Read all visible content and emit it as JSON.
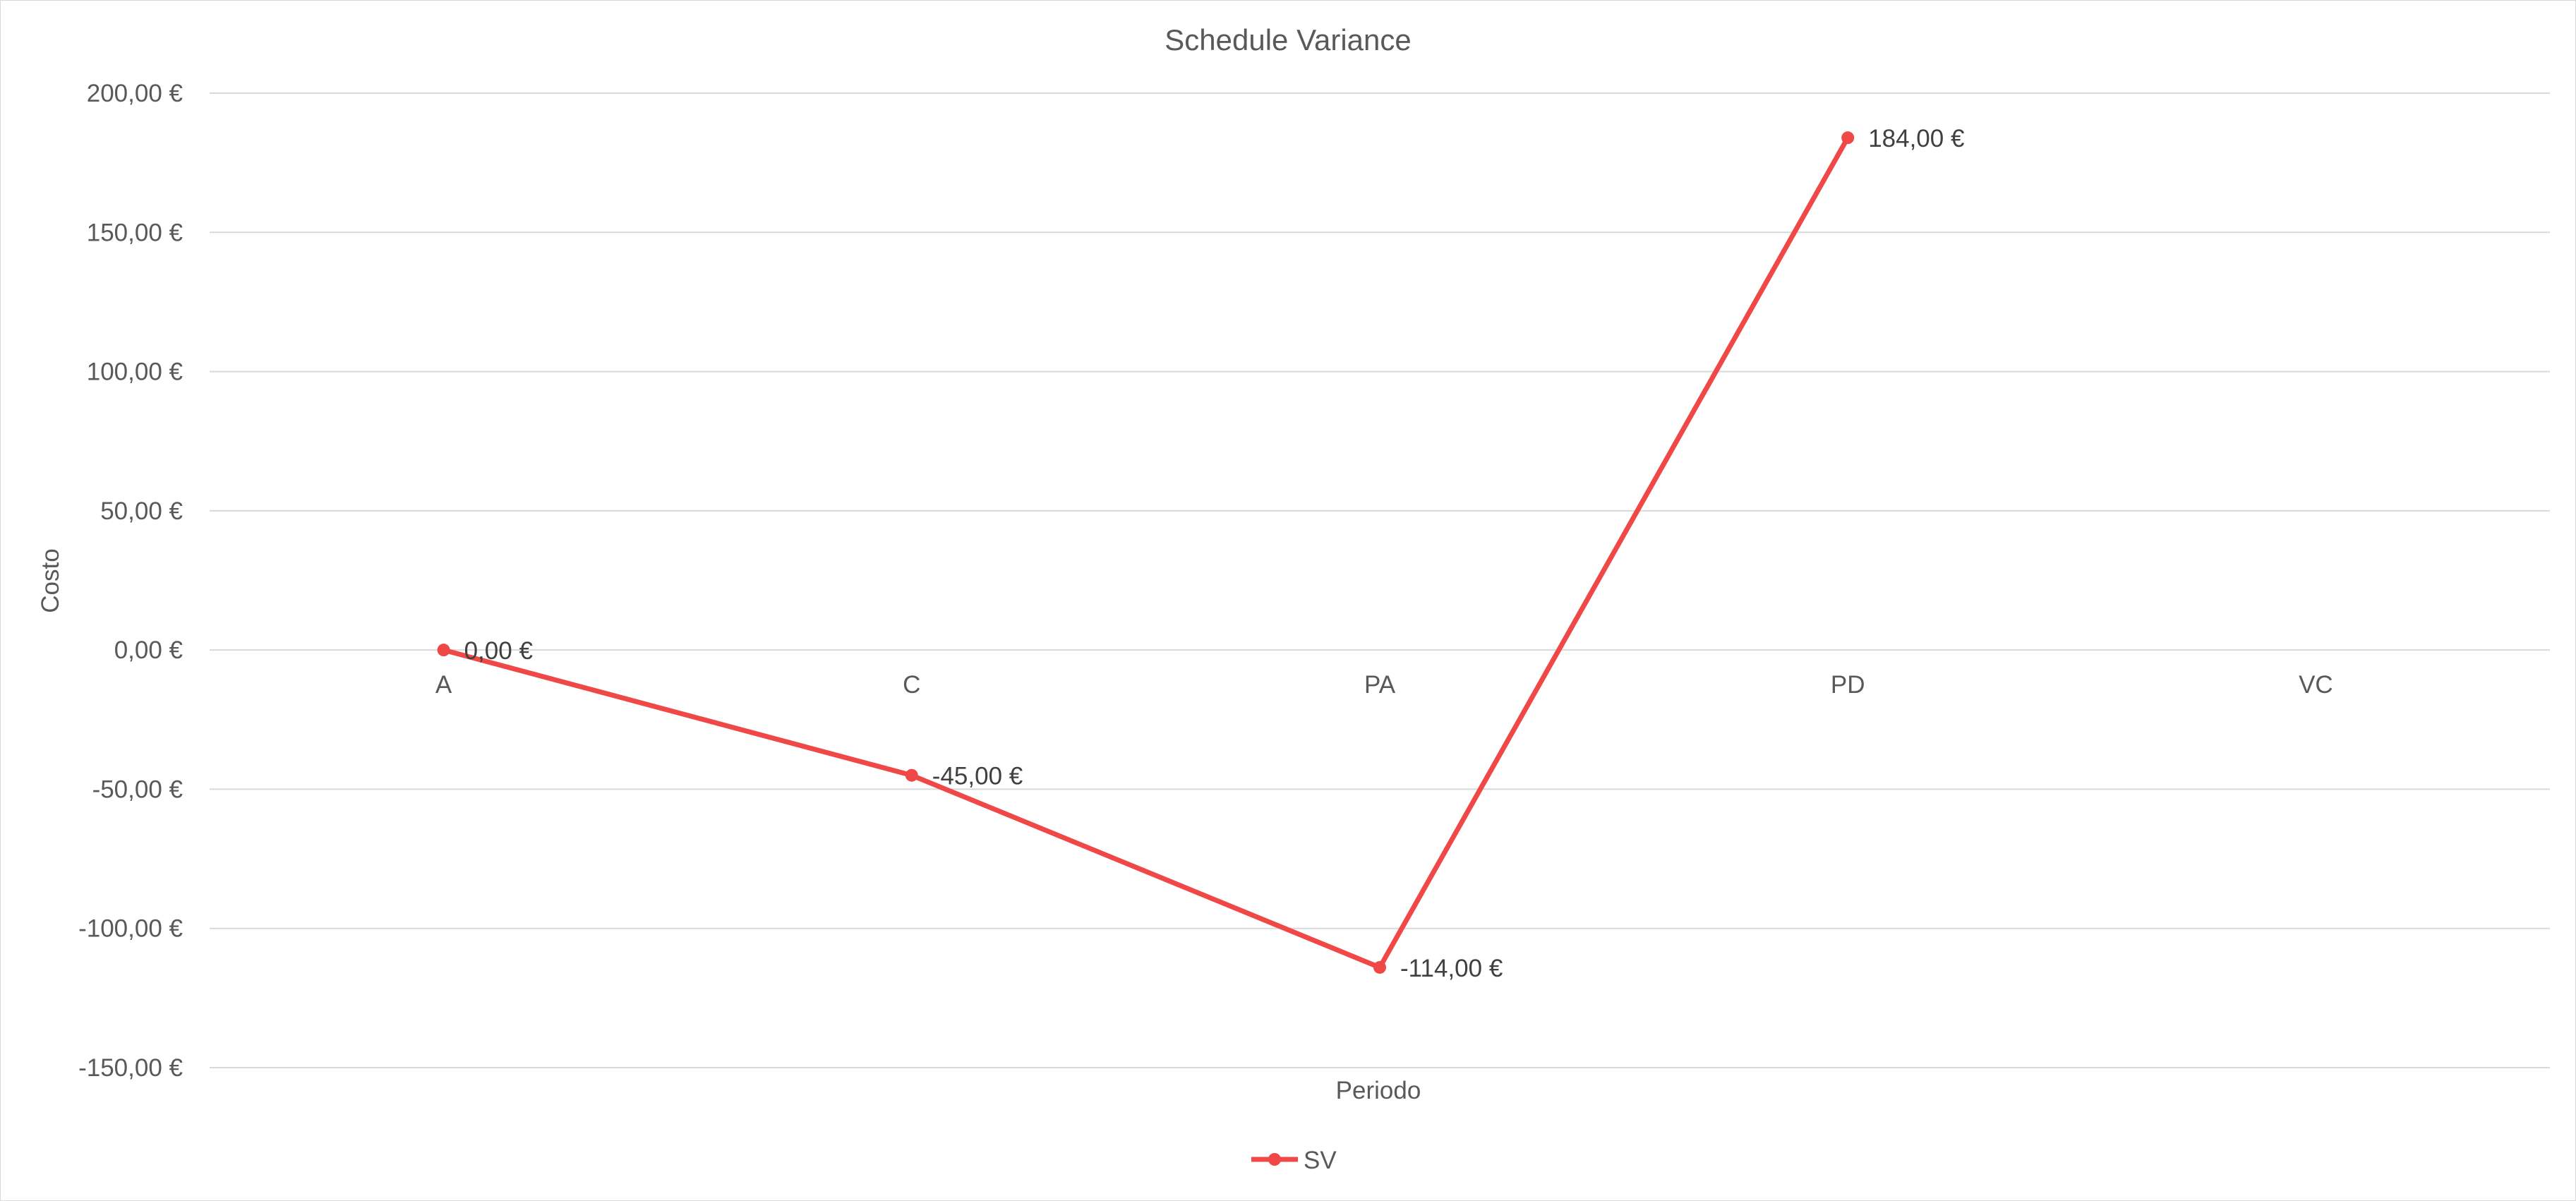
{
  "chart_data": {
    "type": "line",
    "title": "Schedule Variance",
    "xlabel": "Periodo",
    "ylabel": "Costo",
    "categories": [
      "A",
      "C",
      "PA",
      "PD",
      "VC"
    ],
    "series": [
      {
        "name": "SV",
        "color": "#f04747",
        "values": [
          0,
          -45,
          -114,
          184,
          null
        ],
        "data_labels": [
          "0,00 €",
          "-45,00 €",
          "-114,00 €",
          "184,00 €",
          null
        ]
      }
    ],
    "ylim": [
      -150,
      200
    ],
    "yticks": [
      200,
      150,
      100,
      50,
      0,
      -50,
      -100,
      -150
    ],
    "ytick_labels": [
      "200,00 €",
      "150,00 €",
      "100,00 €",
      "50,00 €",
      "0,00 €",
      "-50,00 €",
      "-100,00 €",
      "-150,00 €"
    ],
    "grid": true,
    "legend_position": "bottom"
  }
}
